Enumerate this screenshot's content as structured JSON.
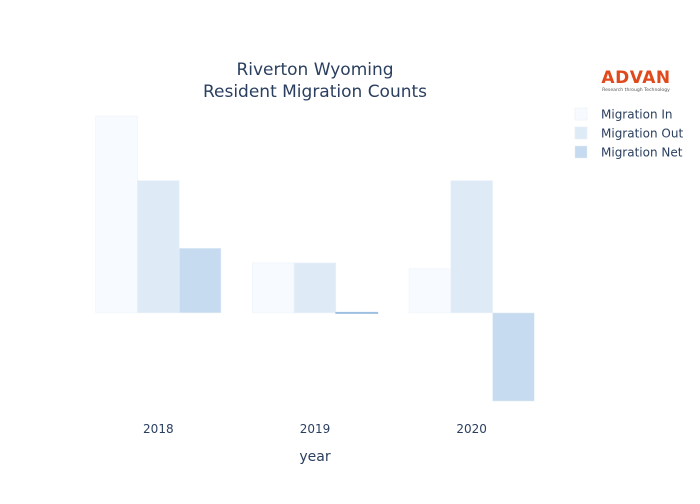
{
  "logo": {
    "name": "ADVAN",
    "tagline": "Research through Technology",
    "color": "#e0491c"
  },
  "chart_data": {
    "type": "bar",
    "title": "Riverton Wyoming",
    "subtitle": "Resident Migration Counts",
    "xlabel": "year",
    "ylabel": "",
    "categories": [
      "2018",
      "2019",
      "2020"
    ],
    "series": [
      {
        "name": "Migration In",
        "values": [
          67,
          17,
          15
        ],
        "color": "#f7fbff"
      },
      {
        "name": "Migration Out",
        "values": [
          45,
          17,
          45
        ],
        "color": "#deebf7"
      },
      {
        "name": "Migration Net",
        "values": [
          22,
          0,
          -30
        ],
        "color": "#c6dbef"
      }
    ],
    "ylim": [
      -31,
      67
    ],
    "grid": false,
    "legend_position": "top-right",
    "y_axis_visible": false
  }
}
